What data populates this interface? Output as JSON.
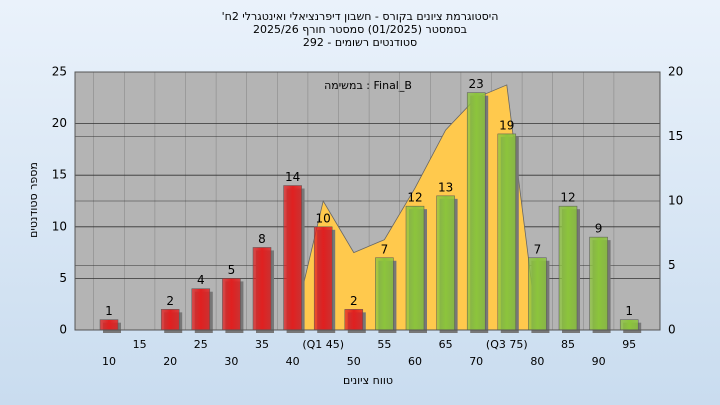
{
  "chart_data": {
    "type": "bar",
    "title": "'היסטוגרמת ציונים בקורס - חשבון דיפרנציאלי ואינטגרלי 2ח",
    "subtitle": "בסמסטר  (01/2025)  סמסטר חורף 2025/26",
    "subtitle2": "סטודנטים רשומים - 292",
    "annotation": "במשימה : Final_B",
    "x_label": "טווח ציונים",
    "y_label": "מספר סטודנטים",
    "categories": [
      "10",
      "15",
      "20",
      "25",
      "30",
      "35",
      "40",
      "(Q1 45)",
      "50",
      "55",
      "60",
      "65",
      "70",
      "(Q3 75)",
      "80",
      "85",
      "90",
      "95"
    ],
    "values": [
      1,
      null,
      2,
      4,
      5,
      8,
      14,
      10,
      2,
      7,
      12,
      13,
      23,
      19,
      7,
      12,
      9,
      1
    ],
    "bar_colors": [
      "#e02020",
      "#e02020",
      "#e02020",
      "#e02020",
      "#e02020",
      "#e02020",
      "#e02020",
      "#e02020",
      "#e02020",
      "#8cc43c",
      "#8cc43c",
      "#8cc43c",
      "#8cc43c",
      "#8cc43c",
      "#8cc43c",
      "#8cc43c",
      "#8cc43c",
      "#8cc43c"
    ],
    "area": {
      "color": "#ffc94d",
      "axis": "y2",
      "values": [
        null,
        null,
        null,
        null,
        null,
        null,
        0,
        10,
        6,
        7,
        11,
        15.5,
        18,
        19,
        0,
        null,
        null,
        null
      ]
    },
    "ylim": [
      0,
      25
    ],
    "yticks": [
      0,
      5,
      10,
      15,
      20,
      25
    ],
    "y2lim": [
      0,
      20
    ],
    "y2ticks": [
      0,
      5,
      10,
      15,
      20
    ],
    "grid": true
  }
}
